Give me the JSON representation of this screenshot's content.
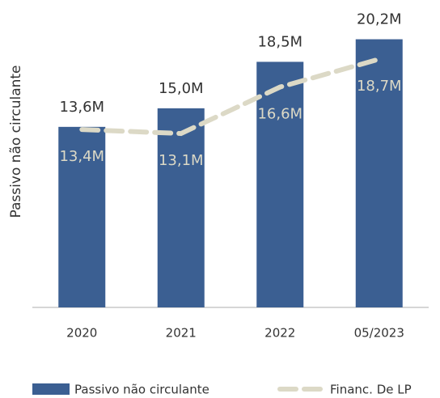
{
  "chart_data": {
    "type": "bar",
    "ylabel": "Passivo não circulante",
    "categories": [
      "2020",
      "2021",
      "2022",
      "05/2023"
    ],
    "ylim": [
      0,
      22
    ],
    "series": [
      {
        "name": "Passivo não circulante",
        "type": "bar",
        "color": "#3b5f92",
        "values": [
          13.6,
          15.0,
          18.5,
          20.2
        ],
        "value_labels": [
          "13,6M",
          "15,0M",
          "18,5M",
          "20,2M"
        ]
      },
      {
        "name": "Financ. De LP",
        "type": "line",
        "color": "#dcd9c6",
        "values": [
          13.4,
          13.1,
          16.6,
          18.7
        ],
        "value_labels": [
          "13,4M",
          "13,1M",
          "16,6M",
          "18,7M"
        ]
      }
    ]
  }
}
